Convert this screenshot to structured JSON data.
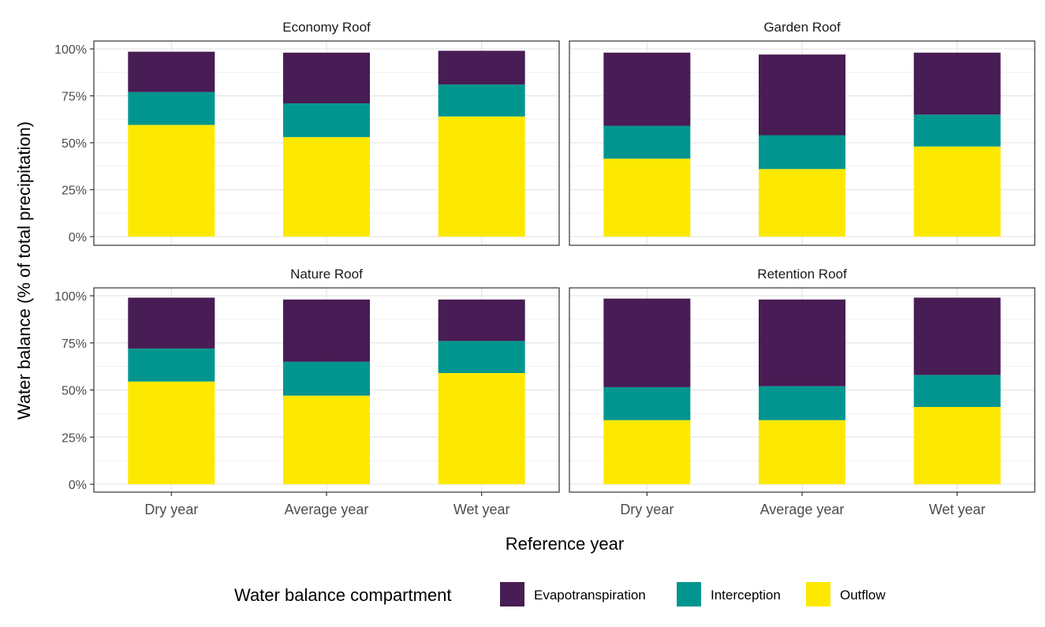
{
  "chart_data": {
    "type": "bar",
    "stacked": true,
    "xlabel": "Reference year",
    "ylabel": "Water balance (% of total precipitation)",
    "ylim": [
      0,
      100
    ],
    "y_ticks": [
      "0%",
      "25%",
      "50%",
      "75%",
      "100%"
    ],
    "y_tick_values": [
      0,
      25,
      50,
      75,
      100
    ],
    "categories": [
      "Dry year",
      "Average year",
      "Wet year"
    ],
    "legend_title": "Water balance compartment",
    "legend_position": "bottom",
    "compartments": [
      {
        "name": "Evapotranspiration",
        "color": "#481c54"
      },
      {
        "name": "Interception",
        "color": "#00968f"
      },
      {
        "name": "Outflow",
        "color": "#fde900"
      }
    ],
    "panels": [
      {
        "title": "Economy Roof",
        "series": [
          {
            "name": "Outflow",
            "values": [
              59.5,
              53,
              64
            ]
          },
          {
            "name": "Interception",
            "values": [
              17.5,
              18,
              17
            ]
          },
          {
            "name": "Evapotranspiration",
            "values": [
              21.5,
              27,
              18
            ]
          }
        ]
      },
      {
        "title": "Garden Roof",
        "series": [
          {
            "name": "Outflow",
            "values": [
              41.5,
              36,
              48
            ]
          },
          {
            "name": "Interception",
            "values": [
              17.5,
              18,
              17
            ]
          },
          {
            "name": "Evapotranspiration",
            "values": [
              39,
              43,
              33
            ]
          }
        ]
      },
      {
        "title": "Nature Roof",
        "series": [
          {
            "name": "Outflow",
            "values": [
              54.5,
              47,
              59
            ]
          },
          {
            "name": "Interception",
            "values": [
              17.5,
              18,
              17
            ]
          },
          {
            "name": "Evapotranspiration",
            "values": [
              27,
              33,
              22
            ]
          }
        ]
      },
      {
        "title": "Retention Roof",
        "series": [
          {
            "name": "Outflow",
            "values": [
              34,
              34,
              41
            ]
          },
          {
            "name": "Interception",
            "values": [
              17.5,
              18,
              17
            ]
          },
          {
            "name": "Evapotranspiration",
            "values": [
              47,
              46,
              41
            ]
          }
        ]
      }
    ]
  }
}
